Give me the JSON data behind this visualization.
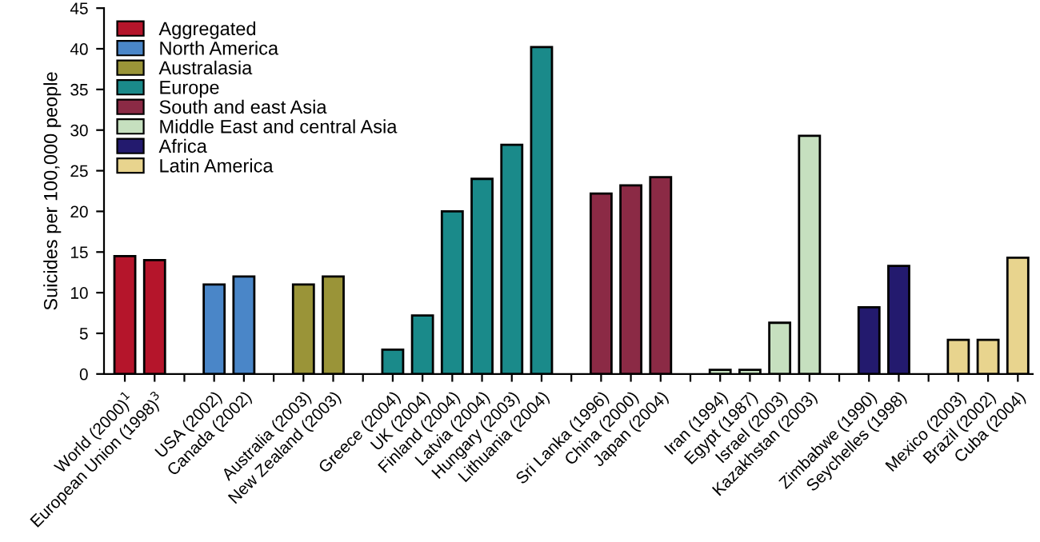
{
  "chart_data": {
    "type": "bar",
    "ylabel": "Suicides per 100,000 people",
    "categories": [
      "World (2000)$^{1}$",
      "European Union (1998)$^{3}$",
      null,
      "USA (2002)",
      "Canada (2002)",
      null,
      "Australia (2003)",
      "New Zealand (2003)",
      null,
      "Greece (2004)",
      "UK (2004)",
      "Finland (2004)",
      "Latvia (2004)",
      "Hungary (2003)",
      "Lithuania (2004)",
      null,
      "Sri Lanka (1996)",
      "China (2000)",
      "Japan (2004)",
      null,
      "Iran (1994)",
      "Egypt (1987)",
      "Israel (2003)",
      "Kazakhstan (2003)",
      null,
      "Zimbabwe (1990)",
      "Seychelles (1998)",
      null,
      "Mexico (2003)",
      "Brazil (2002)",
      "Cuba (2004)"
    ],
    "series": [
      {
        "name": "Aggregated",
        "color": "#b5152b",
        "values": [
          14.5,
          14,
          null,
          null,
          null,
          null,
          null,
          null,
          null,
          null,
          null,
          null,
          null,
          null,
          null,
          null,
          null,
          null,
          null,
          null,
          null,
          null,
          null,
          null,
          null,
          null,
          null,
          null,
          null,
          null,
          null
        ]
      },
      {
        "name": "North America",
        "color": "#4a86c8",
        "values": [
          null,
          null,
          null,
          11,
          12,
          null,
          null,
          null,
          null,
          null,
          null,
          null,
          null,
          null,
          null,
          null,
          null,
          null,
          null,
          null,
          null,
          null,
          null,
          null,
          null,
          null,
          null,
          null,
          null,
          null,
          null
        ]
      },
      {
        "name": "Australasia",
        "color": "#9a9438",
        "values": [
          null,
          null,
          null,
          null,
          null,
          null,
          11,
          12,
          null,
          null,
          null,
          null,
          null,
          null,
          null,
          null,
          null,
          null,
          null,
          null,
          null,
          null,
          null,
          null,
          null,
          null,
          null,
          null,
          null,
          null,
          null
        ]
      },
      {
        "name": "Europe",
        "color": "#1a8a8a",
        "values": [
          null,
          null,
          null,
          null,
          null,
          null,
          null,
          null,
          null,
          3,
          7.2,
          20,
          24,
          28.2,
          40.2,
          null,
          null,
          null,
          null,
          null,
          null,
          null,
          null,
          null,
          null,
          null,
          null,
          null,
          null,
          null,
          null
        ]
      },
      {
        "name": "South and east Asia",
        "color": "#8b2a45",
        "values": [
          null,
          null,
          null,
          null,
          null,
          null,
          null,
          null,
          null,
          null,
          null,
          null,
          null,
          null,
          null,
          null,
          22.2,
          23.2,
          24.2,
          null,
          null,
          null,
          null,
          null,
          null,
          null,
          null,
          null,
          null,
          null,
          null
        ]
      },
      {
        "name": "Middle East and central Asia",
        "color": "#c6e0bf",
        "values": [
          null,
          null,
          null,
          null,
          null,
          null,
          null,
          null,
          null,
          null,
          null,
          null,
          null,
          null,
          null,
          null,
          null,
          null,
          null,
          null,
          0.5,
          0.5,
          6.3,
          29.3,
          null,
          null,
          null,
          null,
          null,
          null,
          null
        ]
      },
      {
        "name": "Africa",
        "color": "#231a6e",
        "values": [
          null,
          null,
          null,
          null,
          null,
          null,
          null,
          null,
          null,
          null,
          null,
          null,
          null,
          null,
          null,
          null,
          null,
          null,
          null,
          null,
          null,
          null,
          null,
          null,
          null,
          8.2,
          13.3,
          null,
          null,
          null,
          null
        ]
      },
      {
        "name": "Latin America",
        "color": "#e8d48e",
        "values": [
          null,
          null,
          null,
          null,
          null,
          null,
          null,
          null,
          null,
          null,
          null,
          null,
          null,
          null,
          null,
          null,
          null,
          null,
          null,
          null,
          null,
          null,
          null,
          null,
          null,
          null,
          null,
          null,
          4.2,
          4.2,
          14.3
        ]
      }
    ],
    "ylim": [
      0,
      45
    ],
    "yticks": [
      0,
      5,
      10,
      15,
      20,
      25,
      30,
      35,
      40,
      45
    ],
    "grid": false,
    "legend": "top left"
  }
}
